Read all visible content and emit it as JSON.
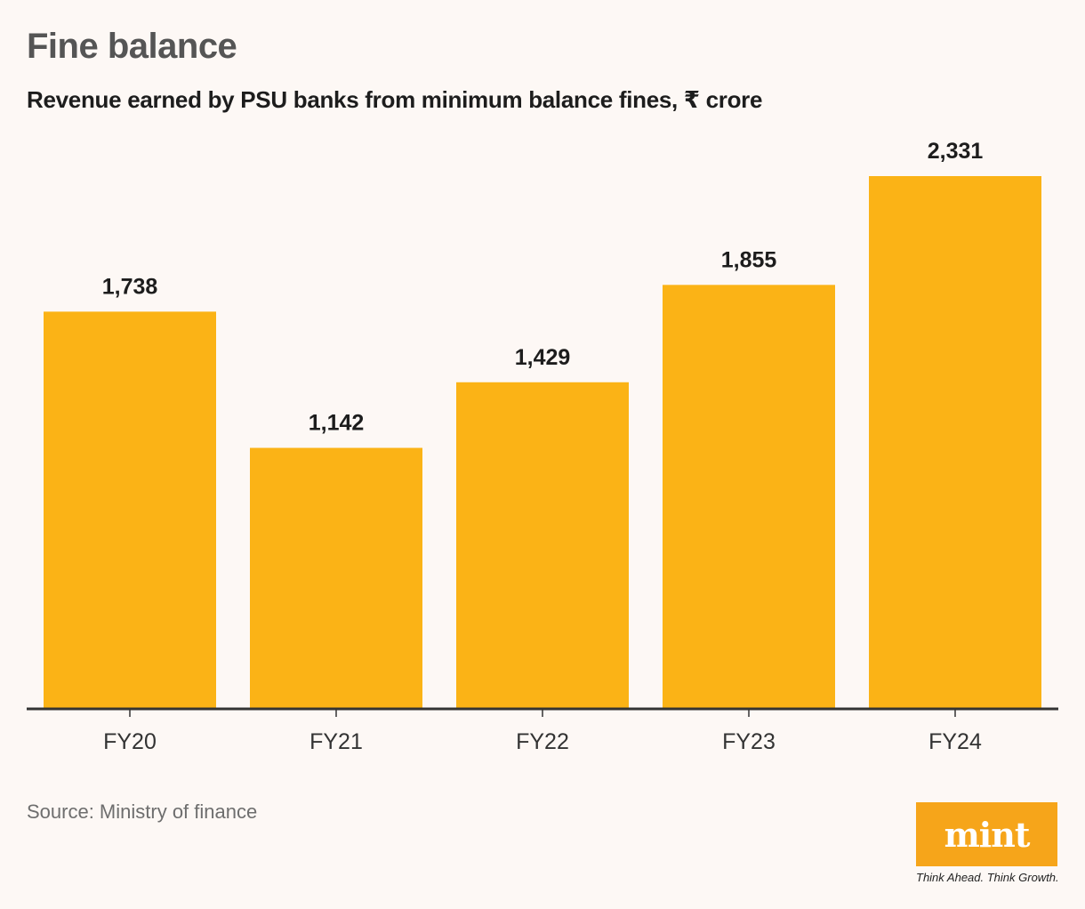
{
  "header": {
    "title": "Fine balance",
    "subtitle": "Revenue earned by PSU banks from minimum balance fines, ₹ crore"
  },
  "chart_data": {
    "type": "bar",
    "title": "Fine balance",
    "subtitle": "Revenue earned by PSU banks from minimum balance fines, ₹ crore",
    "categories": [
      "FY20",
      "FY21",
      "FY22",
      "FY23",
      "FY24"
    ],
    "values": [
      1738,
      1142,
      1429,
      1855,
      2331
    ],
    "value_labels": [
      "1,738",
      "1,142",
      "1,429",
      "1,855",
      "2,331"
    ],
    "xlabel": "",
    "ylabel": "₹ crore",
    "ylim": [
      0,
      2331
    ],
    "grid": false,
    "bar_color": "#fbb316",
    "axis_color": "#333333"
  },
  "footer": {
    "source": "Source: Ministry of finance",
    "logo_text": "mint",
    "tagline": "Think Ahead. Think Growth."
  },
  "colors": {
    "background": "#fdf8f5",
    "bar": "#fbb316",
    "logo": "#f6a51a"
  }
}
